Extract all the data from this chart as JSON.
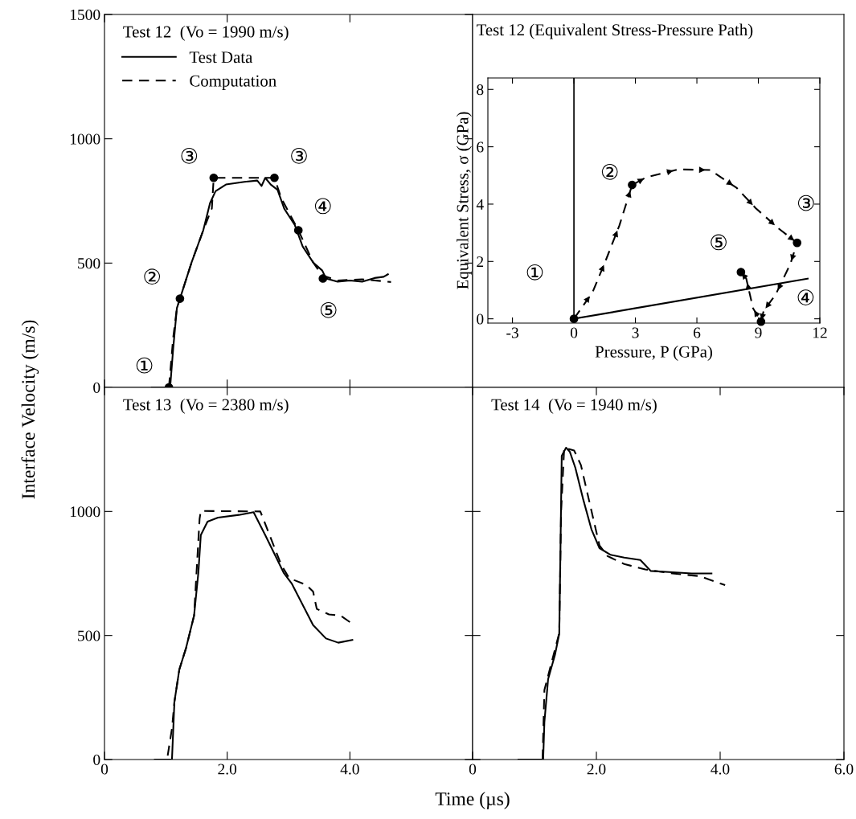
{
  "chart_data": [
    {
      "type": "line",
      "title": "Test 12  (Vo = 1990 m/s)",
      "ylabel": "Interface Velocity (m/s)",
      "xlim": [
        0,
        6
      ],
      "ylim": [
        0,
        1500
      ],
      "xticks": [
        0,
        2,
        4
      ],
      "yticks": [
        0,
        500,
        1000,
        1500
      ],
      "tick_labels": "y",
      "legend": "top left",
      "grid": false,
      "series": [
        {
          "name": "Test Data",
          "color": "#000000",
          "line_style": "solid",
          "x": [
            0.77,
            1.07,
            1.12,
            1.18,
            1.23,
            1.42,
            1.61,
            1.72,
            1.81,
            1.98,
            2.28,
            2.49,
            2.56,
            2.62,
            2.71,
            2.82,
            2.93,
            3.1,
            3.23,
            3.4,
            3.55,
            3.61,
            3.8,
            4.0,
            4.2,
            4.4,
            4.55,
            4.62
          ],
          "values": [
            0,
            0,
            157,
            319,
            357,
            503,
            632,
            741,
            789,
            816,
            827,
            832,
            810,
            843,
            816,
            795,
            719,
            654,
            567,
            503,
            470,
            438,
            425,
            430,
            425,
            440,
            445,
            455
          ]
        },
        {
          "name": "Computation",
          "color": "#000000",
          "line_style": "dashed",
          "x": [
            1.05,
            1.12,
            1.18,
            1.23,
            1.42,
            1.61,
            1.75,
            1.78,
            2.77,
            2.88,
            3.16,
            3.4,
            3.55,
            3.8,
            4.2,
            4.67
          ],
          "values": [
            0,
            200,
            319,
            357,
            503,
            632,
            720,
            843,
            843,
            762,
            632,
            503,
            450,
            430,
            435,
            424
          ]
        },
        {
          "type": "scatter",
          "marker": "circle",
          "color": "#000000",
          "x": [
            1.05,
            1.23,
            1.78,
            2.77,
            3.16,
            3.56
          ],
          "values": [
            0,
            357,
            843,
            843,
            632,
            438
          ]
        }
      ],
      "annotations": [
        {
          "text": "①",
          "x": 1.05,
          "y": 0
        },
        {
          "text": "②",
          "x": 1.23,
          "y": 357
        },
        {
          "text": "③",
          "x": 1.78,
          "y": 843
        },
        {
          "text": "③",
          "x": 2.77,
          "y": 843
        },
        {
          "text": "④",
          "x": 3.16,
          "y": 632
        },
        {
          "text": "⑤",
          "x": 3.56,
          "y": 438
        }
      ]
    },
    {
      "type": "line",
      "title": "Test 12 (Equivalent Stress-Pressure Path)",
      "xlabel": "Pressure, P (GPa)",
      "ylabel": "Equivalent Stress, σ (GPa)",
      "xlim": [
        -4.2,
        12
      ],
      "ylim": [
        -0.15,
        8.4
      ],
      "xticks": [
        -3,
        0,
        3,
        6,
        9,
        12
      ],
      "yticks": [
        0,
        2,
        4,
        6,
        8
      ],
      "grid": false,
      "ref_lines": [
        {
          "axis": "x",
          "value": 0
        }
      ],
      "series": [
        {
          "color": "#000000",
          "line_style": "dashed",
          "x": [
            0,
            0.91,
            1.56,
            2.22,
            2.84,
            3.52,
            5.08,
            6.65,
            7.95,
            8.87,
            9.97,
            10.89,
            10.56,
            9.84,
            9.26,
            9.13,
            8.74,
            8.41,
            8.15
          ],
          "values": [
            0,
            0.93,
            2.05,
            3.26,
            4.67,
            4.93,
            5.21,
            5.19,
            4.56,
            3.86,
            3.16,
            2.65,
            1.91,
            0.84,
            0.28,
            -0.1,
            0.37,
            1.4,
            1.63
          ]
        },
        {
          "color": "#000000",
          "line_style": "solid",
          "x": [
            0,
            11.41
          ],
          "values": [
            0,
            1.4
          ]
        },
        {
          "type": "scatter",
          "marker": "circle",
          "color": "#000000",
          "x": [
            0,
            2.84,
            10.89,
            9.13,
            8.15
          ],
          "values": [
            0,
            4.67,
            2.65,
            -0.1,
            1.63
          ]
        }
      ],
      "annotations": [
        {
          "text": "①",
          "x": 0,
          "y": 0
        },
        {
          "text": "②",
          "x": 2.84,
          "y": 4.67
        },
        {
          "text": "③",
          "x": 10.89,
          "y": 2.65
        },
        {
          "text": "④",
          "x": 9.13,
          "y": -0.1
        },
        {
          "text": "⑤",
          "x": 8.15,
          "y": 1.63
        }
      ]
    },
    {
      "type": "line",
      "title": "Test 13  (Vo = 2380 m/s)",
      "xlabel": "Time (µs)",
      "xlim": [
        0,
        6
      ],
      "ylim": [
        0,
        1500
      ],
      "xticks": [
        0,
        {
          "value": 2,
          "label": "2.0"
        },
        {
          "value": 4,
          "label": "4.0"
        }
      ],
      "yticks": [
        0,
        500,
        1000
      ],
      "grid": false,
      "series": [
        {
          "color": "#000000",
          "line_style": "solid",
          "x": [
            0.82,
            1.1,
            1.14,
            1.22,
            1.33,
            1.46,
            1.53,
            1.57,
            1.68,
            1.85,
            2.19,
            2.43,
            2.62,
            2.92,
            3.05,
            3.4,
            3.61,
            3.81,
            4.04
          ],
          "values": [
            0,
            0,
            233,
            363,
            450,
            580,
            753,
            905,
            959,
            975,
            986,
            997,
            905,
            753,
            710,
            542,
            488,
            471,
            482
          ]
        },
        {
          "color": "#000000",
          "line_style": "dashed",
          "x": [
            1.03,
            1.1,
            1.14,
            1.22,
            1.33,
            1.46,
            1.55,
            1.57,
            2.54,
            2.58,
            2.88,
            3.01,
            3.29,
            3.4,
            3.46,
            3.66,
            3.85,
            4.04
          ],
          "values": [
            16,
            125,
            233,
            363,
            450,
            580,
            970,
            1002,
            1000,
            975,
            785,
            731,
            704,
            677,
            607,
            585,
            580,
            547
          ]
        }
      ]
    },
    {
      "type": "line",
      "title": "Test 14  (Vo = 1940 m/s)",
      "xlim": [
        0,
        6
      ],
      "ylim": [
        0,
        1500
      ],
      "xticks": [
        0,
        {
          "value": 2,
          "label": "2.0"
        },
        {
          "value": 4,
          "label": "4.0"
        },
        {
          "value": 6,
          "label": "6.0"
        }
      ],
      "yticks": [
        0,
        500,
        1000
      ],
      "tick_labels": "x",
      "grid": false,
      "series": [
        {
          "color": "#000000",
          "line_style": "solid",
          "x": [
            0.74,
            1.14,
            1.16,
            1.22,
            1.33,
            1.4,
            1.42,
            1.44,
            1.51,
            1.57,
            1.66,
            1.79,
            1.92,
            2.05,
            2.23,
            2.45,
            2.71,
            2.88,
            3.23,
            3.54,
            3.86
          ],
          "values": [
            0,
            0,
            151,
            324,
            421,
            507,
            852,
            1224,
            1257,
            1241,
            1176,
            1046,
            928,
            852,
            825,
            814,
            804,
            760,
            755,
            750,
            750
          ]
        },
        {
          "color": "#000000",
          "line_style": "dashed",
          "x": [
            1.13,
            1.16,
            1.4,
            1.43,
            1.48,
            1.64,
            1.75,
            1.88,
            2.05,
            2.18,
            2.45,
            2.79,
            3.23,
            3.67,
            4.08
          ],
          "values": [
            0,
            280,
            510,
            1000,
            1257,
            1246,
            1187,
            1046,
            863,
            820,
            788,
            766,
            750,
            739,
            703
          ]
        }
      ]
    }
  ]
}
